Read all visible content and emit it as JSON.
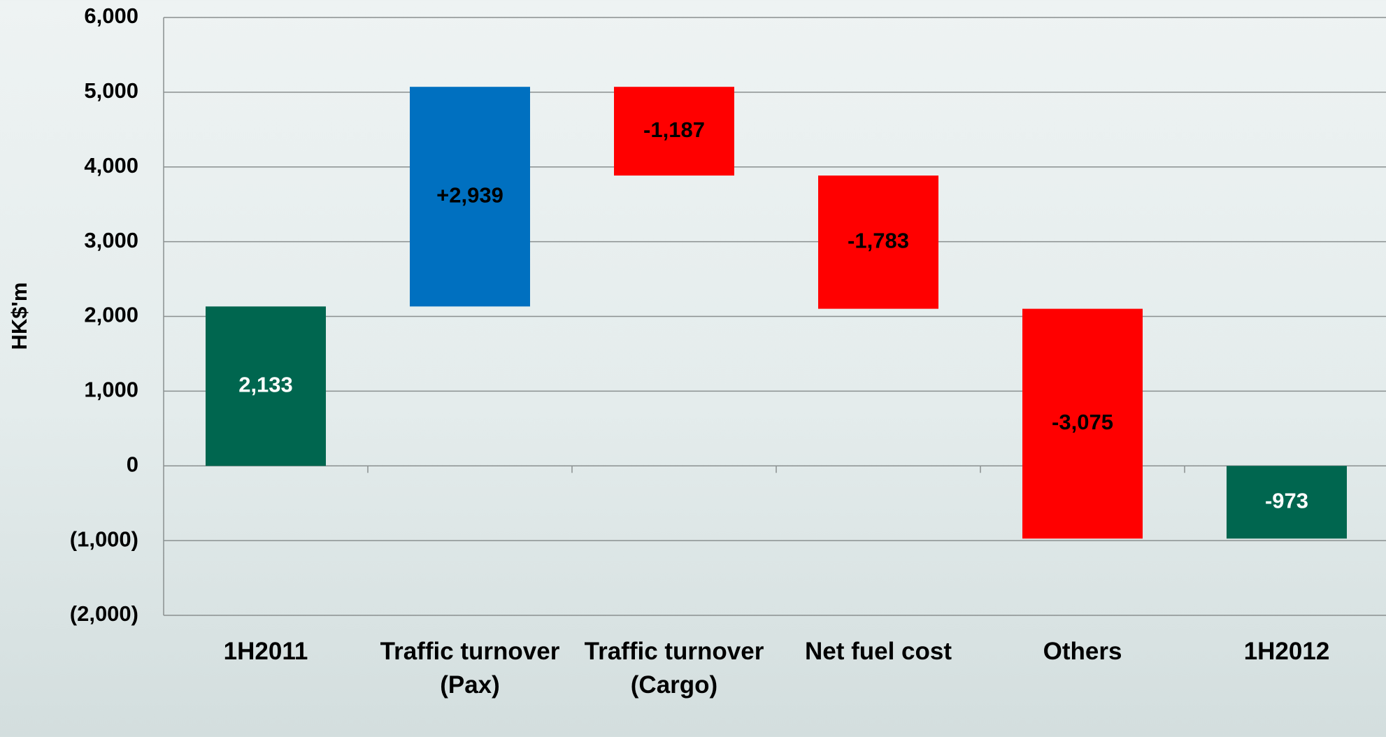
{
  "chart_data": {
    "type": "waterfall",
    "y_label": "HK$'m",
    "categories": [
      "1H2011",
      "Traffic turnover (Pax)",
      "Traffic turnover (Cargo)",
      "Net fuel cost",
      "Others",
      "1H2012"
    ],
    "values": [
      2133,
      2939,
      -1187,
      -1783,
      -3075,
      -973
    ],
    "value_labels": [
      "2,133",
      "+2,939",
      "-1,187",
      "-1,783",
      "-3,075",
      "-973"
    ],
    "measure": [
      "absolute",
      "relative",
      "relative",
      "relative",
      "relative",
      "total"
    ],
    "colors": [
      "#00664f",
      "#0070c0",
      "#ff0000",
      "#ff0000",
      "#ff0000",
      "#00664f"
    ],
    "label_colors": [
      "#ffffff",
      "#000000",
      "#000000",
      "#000000",
      "#000000",
      "#ffffff"
    ],
    "ylim": [
      -2000,
      6000
    ],
    "yticks": [
      {
        "value": -2000,
        "label": "(2,000)"
      },
      {
        "value": -1000,
        "label": "(1,000)"
      },
      0,
      {
        "value": 1000,
        "label": "1,000"
      },
      {
        "value": 2000,
        "label": "2,000"
      },
      {
        "value": 3000,
        "label": "3,000"
      },
      {
        "value": 4000,
        "label": "4,000"
      },
      {
        "value": 5000,
        "label": "5,000"
      },
      {
        "value": 6000,
        "label": "6,000"
      }
    ],
    "grid": true
  }
}
